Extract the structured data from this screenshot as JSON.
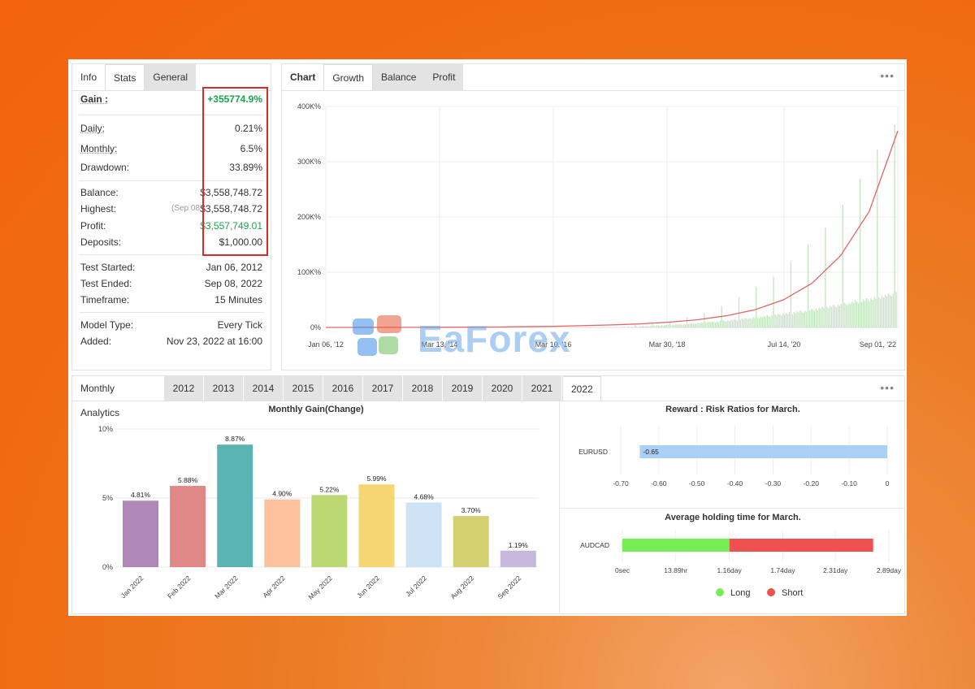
{
  "stats_panel": {
    "tabs": [
      "Info",
      "Stats",
      "General"
    ],
    "gain": {
      "label": "Gain :",
      "value": "+355774.9%"
    },
    "rows1": [
      {
        "label": "Daily:",
        "value": "0.21%"
      },
      {
        "label": "Monthly:",
        "value": "6.5%"
      },
      {
        "label": "Drawdown:",
        "value": "33.89%"
      }
    ],
    "balance": {
      "label": "Balance:",
      "value": "$3,558,748.72"
    },
    "highest": {
      "label": "Highest:",
      "note": "(Sep 08",
      "value": "$3,558,748.72"
    },
    "profit": {
      "label": "Profit:",
      "value": "$3,557,749.01"
    },
    "deposits": {
      "label": "Deposits:",
      "value": "$1,000.00"
    },
    "rows3": [
      {
        "label": "Test Started:",
        "value": "Jan 06, 2012"
      },
      {
        "label": "Test Ended:",
        "value": "Sep 08, 2022"
      },
      {
        "label": "Timeframe:",
        "value": "15 Minutes"
      }
    ],
    "rows4": [
      {
        "label": "Model Type:",
        "value": "Every Tick"
      },
      {
        "label": "Added:",
        "value": "Nov 23, 2022 at 16:00"
      }
    ]
  },
  "chart_panel": {
    "tabs": [
      "Chart",
      "Growth",
      "Balance",
      "Profit"
    ],
    "menu": "•••"
  },
  "watermark": "EaForex",
  "analytics": {
    "tabs": [
      "Monthly Analytics",
      "2012",
      "2013",
      "2014",
      "2015",
      "2016",
      "2017",
      "2018",
      "2019",
      "2020",
      "2021",
      "2022"
    ],
    "menu": "•••",
    "rr_title": "Reward : Risk Ratios for March.",
    "hold_title": "Average holding time for March.",
    "legend_long": "Long",
    "legend_short": "Short"
  },
  "chart_data": [
    {
      "type": "line",
      "yticks": [
        "400K%",
        "300K%",
        "200K%",
        "100K%",
        "0%"
      ],
      "xticks": [
        "Jan 06, '12",
        "Mar 13, '14",
        "Mar 10, '16",
        "Mar 30, '18",
        "Jul 14, '20",
        "Sep 01, '22"
      ],
      "ylim": [
        0,
        400000
      ],
      "series": [
        {
          "x": [
            0,
            0.1,
            0.2,
            0.3,
            0.4,
            0.5,
            0.55,
            0.6,
            0.65,
            0.7,
            0.75,
            0.8,
            0.85,
            0.9,
            0.95,
            1.0
          ],
          "y": [
            0,
            100,
            300,
            800,
            2000,
            4500,
            6500,
            9500,
            14000,
            21000,
            32000,
            50000,
            80000,
            130000,
            210000,
            355775
          ],
          "color": "#e06666"
        }
      ]
    },
    {
      "type": "bar",
      "title": "Monthly Gain(Change)",
      "categories": [
        "Jan 2022",
        "Feb 2022",
        "Mar 2022",
        "Apr 2022",
        "May 2022",
        "Jun 2022",
        "Jul 2022",
        "Aug 2022",
        "Sep 2022"
      ],
      "values": [
        4.81,
        5.88,
        8.87,
        4.9,
        5.22,
        5.99,
        4.68,
        3.7,
        1.19
      ],
      "labels": [
        "4.81%",
        "5.88%",
        "8.87%",
        "4.90%",
        "5.22%",
        "5.99%",
        "4.68%",
        "3.70%",
        "1.19%"
      ],
      "colors": [
        "#b088b8",
        "#e08888",
        "#5ab5b2",
        "#fcc29e",
        "#bcd872",
        "#f6d672",
        "#cde3f4",
        "#d5d070",
        "#c5b8dc"
      ],
      "yticks": [
        "10%",
        "5%",
        "0%"
      ],
      "ylim": [
        0,
        10
      ]
    },
    {
      "type": "bar",
      "title": "Reward : Risk Ratios for March.",
      "categories": [
        "EURUSD"
      ],
      "values": [
        -0.65
      ],
      "labels": [
        "-0.65"
      ],
      "xticks": [
        "-0.70",
        "-0.60",
        "-0.50",
        "-0.40",
        "-0.30",
        "-0.20",
        "-0.10",
        "0"
      ],
      "xlim": [
        -0.7,
        0
      ]
    },
    {
      "type": "bar",
      "title": "Average holding time for March.",
      "categories": [
        "AUDCAD"
      ],
      "series": [
        {
          "name": "Long",
          "value_day": 1.16,
          "color": "#77ee55"
        },
        {
          "name": "Short",
          "value_day": 2.72,
          "color": "#ef5050"
        }
      ],
      "xticks": [
        "0sec",
        "13.89hr",
        "1.16day",
        "1.74day",
        "2.31day",
        "2.89day"
      ],
      "xlim_day": [
        0,
        2.89
      ]
    }
  ]
}
